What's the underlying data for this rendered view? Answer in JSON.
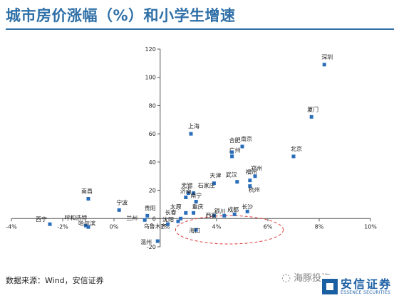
{
  "title": "城市房价涨幅（%）和小学生增速",
  "source": "数据来源：Wind，安信证券",
  "watermark": "海豚投资",
  "brand": {
    "cn": "安信证券",
    "en": "ESSENCE SECURITIES",
    "color": "#1b5fa3"
  },
  "colors": {
    "title": "#2e6fa7",
    "point": "#2a6ebb",
    "ellipse": "#e03c3c"
  },
  "chart_data": {
    "type": "scatter",
    "xlim": [
      -4,
      10
    ],
    "ylim": [
      -20,
      120
    ],
    "x_ticks": [
      -4,
      -2,
      0,
      2,
      4,
      6,
      8,
      10
    ],
    "y_ticks": [
      -20,
      0,
      20,
      40,
      60,
      80,
      100,
      120
    ],
    "x_tick_labels": [
      "-4%",
      "-2%",
      "0%",
      "2%",
      "4%",
      "6%",
      "8%",
      "10%"
    ],
    "y_tick_labels": [
      "-20",
      "0",
      "20",
      "40",
      "60",
      "80",
      "100",
      "120"
    ],
    "grid": false,
    "points": [
      {
        "label": "深圳",
        "x": 8.2,
        "y": 109
      },
      {
        "label": "厦门",
        "x": 7.7,
        "y": 72
      },
      {
        "label": "北京",
        "x": 7.0,
        "y": 44
      },
      {
        "label": "上海",
        "x": 3.0,
        "y": 60
      },
      {
        "label": "南京",
        "x": 5.0,
        "y": 51
      },
      {
        "label": "合肥",
        "x": 4.6,
        "y": 47
      },
      {
        "label": "广州",
        "x": 4.6,
        "y": 44
      },
      {
        "label": "郑州",
        "x": 5.5,
        "y": 30
      },
      {
        "label": "武汉",
        "x": 4.8,
        "y": 26
      },
      {
        "label": "福州",
        "x": 5.3,
        "y": 27
      },
      {
        "label": "杭州",
        "x": 5.3,
        "y": 23
      },
      {
        "label": "天津",
        "x": 3.9,
        "y": 25
      },
      {
        "label": "无锡",
        "x": 2.9,
        "y": 18
      },
      {
        "label": "石家庄",
        "x": 3.1,
        "y": 18
      },
      {
        "label": "济南",
        "x": 2.8,
        "y": 15
      },
      {
        "label": "南宁",
        "x": 3.2,
        "y": 12
      },
      {
        "label": "南昌",
        "x": -1.0,
        "y": 14
      },
      {
        "label": "宁波",
        "x": 0.2,
        "y": 6
      },
      {
        "label": "太原",
        "x": 2.8,
        "y": 4
      },
      {
        "label": "重庆",
        "x": 3.1,
        "y": 4
      },
      {
        "label": "贵阳",
        "x": 1.3,
        "y": 2
      },
      {
        "label": "西安",
        "x": 3.9,
        "y": 2
      },
      {
        "label": "成都",
        "x": 4.7,
        "y": 3
      },
      {
        "label": "长沙",
        "x": 5.2,
        "y": 5
      },
      {
        "label": "银川",
        "x": 4.3,
        "y": 2
      },
      {
        "label": "兰州",
        "x": 1.2,
        "y": -1
      },
      {
        "label": "沈阳",
        "x": 2.5,
        "y": -2
      },
      {
        "label": "长春",
        "x": 2.6,
        "y": 0
      },
      {
        "label": "乌鲁木齐",
        "x": 2.1,
        "y": -4
      },
      {
        "label": "海口",
        "x": 3.2,
        "y": -8
      },
      {
        "label": "西宁",
        "x": -2.5,
        "y": -4
      },
      {
        "label": "呼和浩特",
        "x": -1.1,
        "y": -5
      },
      {
        "label": "哈尔滨",
        "x": -1.0,
        "y": -6
      },
      {
        "label": "温州",
        "x": 1.7,
        "y": -16
      }
    ],
    "annotation": {
      "shape": "dashed-ellipse",
      "center": [
        4.5,
        -8
      ],
      "rx": 2.1,
      "ry": 10
    }
  }
}
